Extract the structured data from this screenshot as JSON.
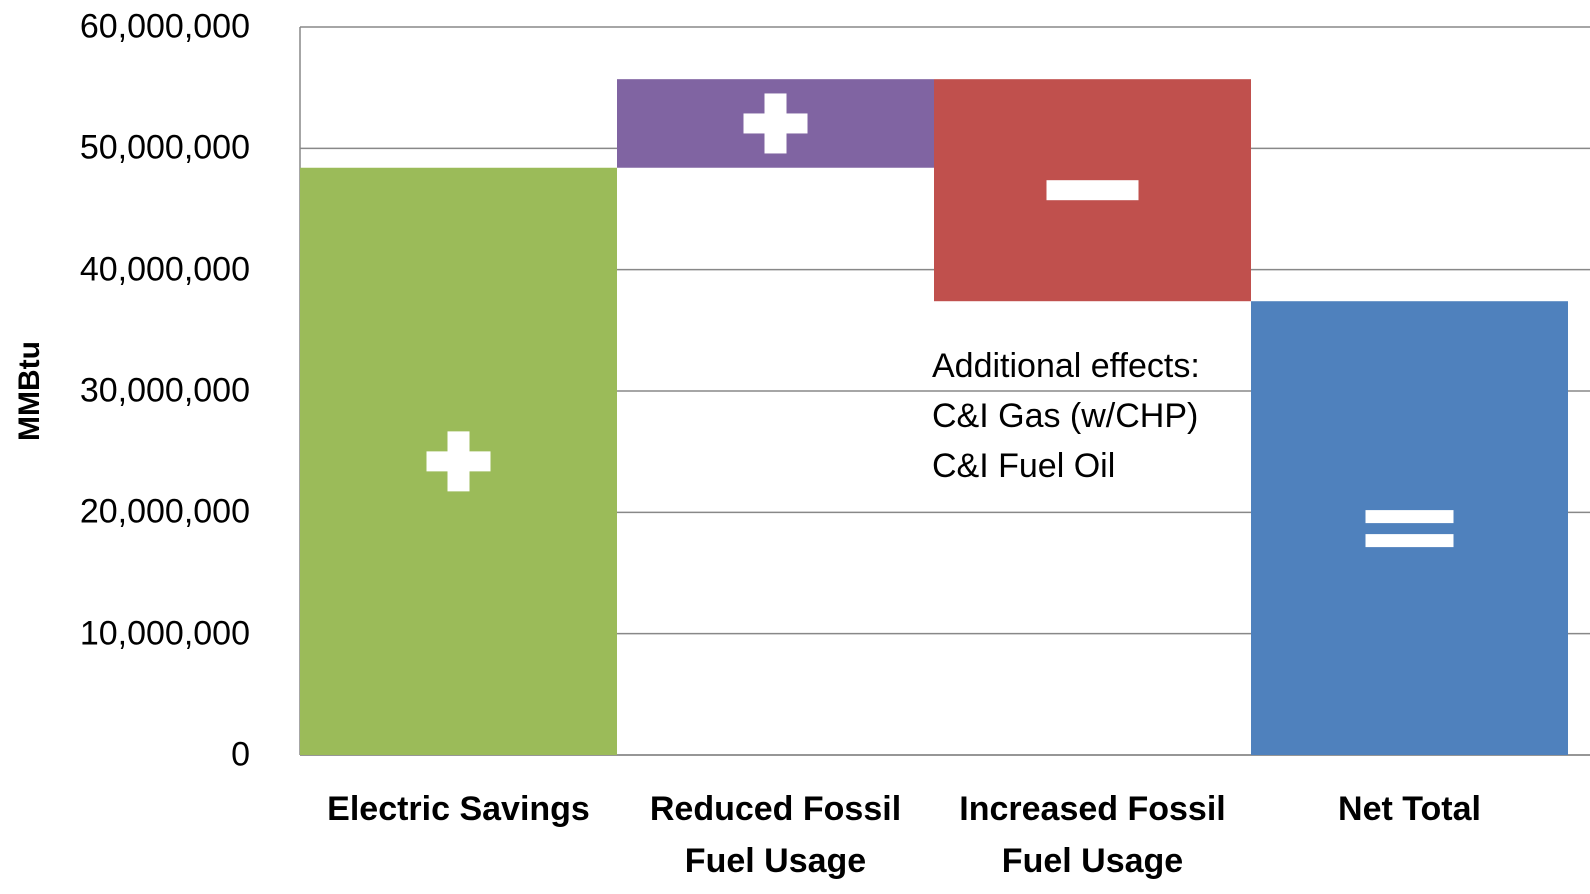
{
  "chart_data": {
    "type": "waterfall",
    "categories": [
      "Electric Savings",
      "Reduced Fossil Fuel Usage",
      "Increased Fossil Fuel Usage",
      "Net Total"
    ],
    "values": [
      48400000,
      7300000,
      -18300000,
      37400000
    ],
    "measure": [
      "absolute",
      "relative",
      "relative",
      "total"
    ],
    "colors": [
      "#9bbb59",
      "#8064a2",
      "#c0504d",
      "#4f81bd"
    ],
    "y_label": "MMBtu",
    "annotation": [
      "Additional effects:",
      "C&I Gas (w/CHP)",
      "C&I Fuel Oil"
    ],
    "ylim": [
      0,
      60000000
    ],
    "yticks": [
      0,
      {
        "value": 10000000,
        "label": "10,000,000"
      },
      {
        "value": 20000000,
        "label": "20,000,000"
      },
      {
        "value": 30000000,
        "label": "30,000,000"
      },
      {
        "value": 40000000,
        "label": "40,000,000"
      },
      {
        "value": 50000000,
        "label": "50,000,000"
      },
      {
        "value": 60000000,
        "label": "60,000,000"
      }
    ],
    "grid": true
  }
}
